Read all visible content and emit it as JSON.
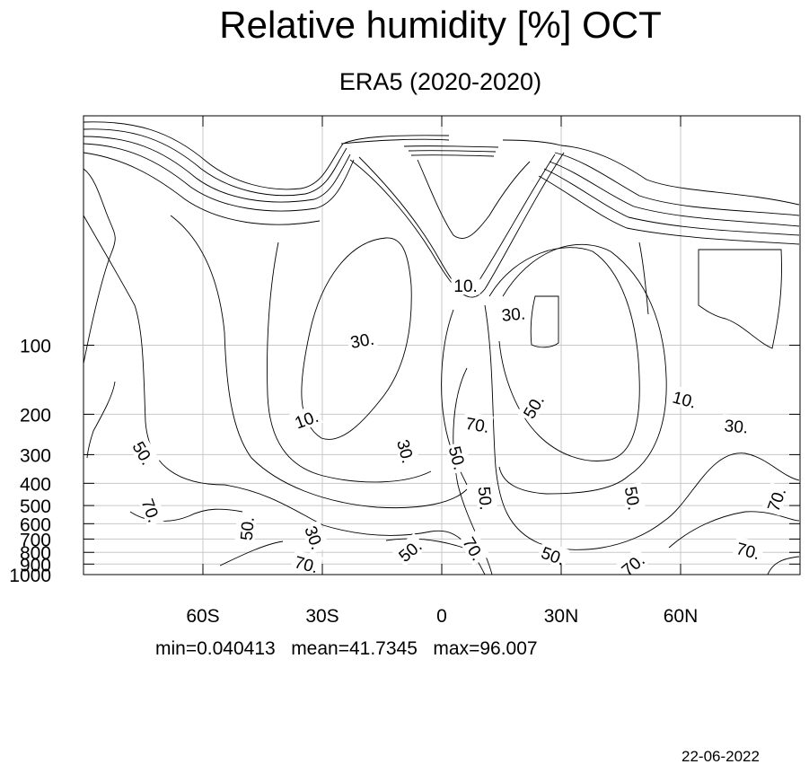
{
  "chart_data": {
    "type": "contour",
    "title": "Relative humidity [%] OCT",
    "subtitle": "ERA5 (2020-2020)",
    "x_ticks": [
      "60S",
      "30S",
      "0",
      "30N",
      "60N"
    ],
    "x_tick_values": [
      -60,
      -30,
      0,
      30,
      60
    ],
    "xlim": [
      -90,
      90
    ],
    "y_ticks": [
      "100",
      "200",
      "300",
      "400",
      "500",
      "600",
      "700",
      "800",
      "900",
      "1000"
    ],
    "y_tick_values": [
      100,
      200,
      300,
      400,
      500,
      600,
      700,
      800,
      900,
      1000
    ],
    "ylim": [
      10,
      1000
    ],
    "y_inverted": true,
    "grid": true,
    "contour_levels": [
      10,
      20,
      30,
      40,
      50,
      60,
      70,
      80,
      90
    ],
    "contour_labels": [
      {
        "text": "10.",
        "lat": -34,
        "p": 210,
        "rot": -20
      },
      {
        "text": "30.",
        "lat": -20,
        "p": 95,
        "rot": -10
      },
      {
        "text": "10.",
        "lat": 6,
        "p": 55,
        "rot": 0
      },
      {
        "text": "30.",
        "lat": 18,
        "p": 73,
        "rot": -5
      },
      {
        "text": "70.",
        "lat": 9,
        "p": 222,
        "rot": 10
      },
      {
        "text": "50.",
        "lat": 23,
        "p": 185,
        "rot": -60
      },
      {
        "text": "10.",
        "lat": 61,
        "p": 172,
        "rot": 15
      },
      {
        "text": "30.",
        "lat": 74,
        "p": 225,
        "rot": 5
      },
      {
        "text": "50.",
        "lat": -75,
        "p": 295,
        "rot": 60
      },
      {
        "text": "30.",
        "lat": -9,
        "p": 290,
        "rot": 75
      },
      {
        "text": "50.",
        "lat": 4,
        "p": 310,
        "rot": 75
      },
      {
        "text": "50.",
        "lat": 11,
        "p": 465,
        "rot": 85
      },
      {
        "text": "50.",
        "lat": 48,
        "p": 465,
        "rot": 80
      },
      {
        "text": "70.",
        "lat": 84,
        "p": 470,
        "rot": -70
      },
      {
        "text": "70.",
        "lat": -73,
        "p": 525,
        "rot": 70
      },
      {
        "text": "50.",
        "lat": -49,
        "p": 630,
        "rot": -85
      },
      {
        "text": "30.",
        "lat": -32,
        "p": 690,
        "rot": 70
      },
      {
        "text": "50.",
        "lat": -8,
        "p": 785,
        "rot": -40
      },
      {
        "text": "70.",
        "lat": 8,
        "p": 770,
        "rot": 60
      },
      {
        "text": "50.",
        "lat": 28,
        "p": 825,
        "rot": 20
      },
      {
        "text": "70.",
        "lat": 77,
        "p": 785,
        "rot": 15
      },
      {
        "text": "70.",
        "lat": -34,
        "p": 900,
        "rot": 15
      },
      {
        "text": "70.",
        "lat": 48,
        "p": 905,
        "rot": -40
      }
    ]
  },
  "stats_text": "min=0.040413   mean=41.7345   max=96.007",
  "date_text": "22-06-2022",
  "colors": {
    "line": "#000000",
    "grid": "#c8c8c8",
    "background": "#ffffff"
  }
}
